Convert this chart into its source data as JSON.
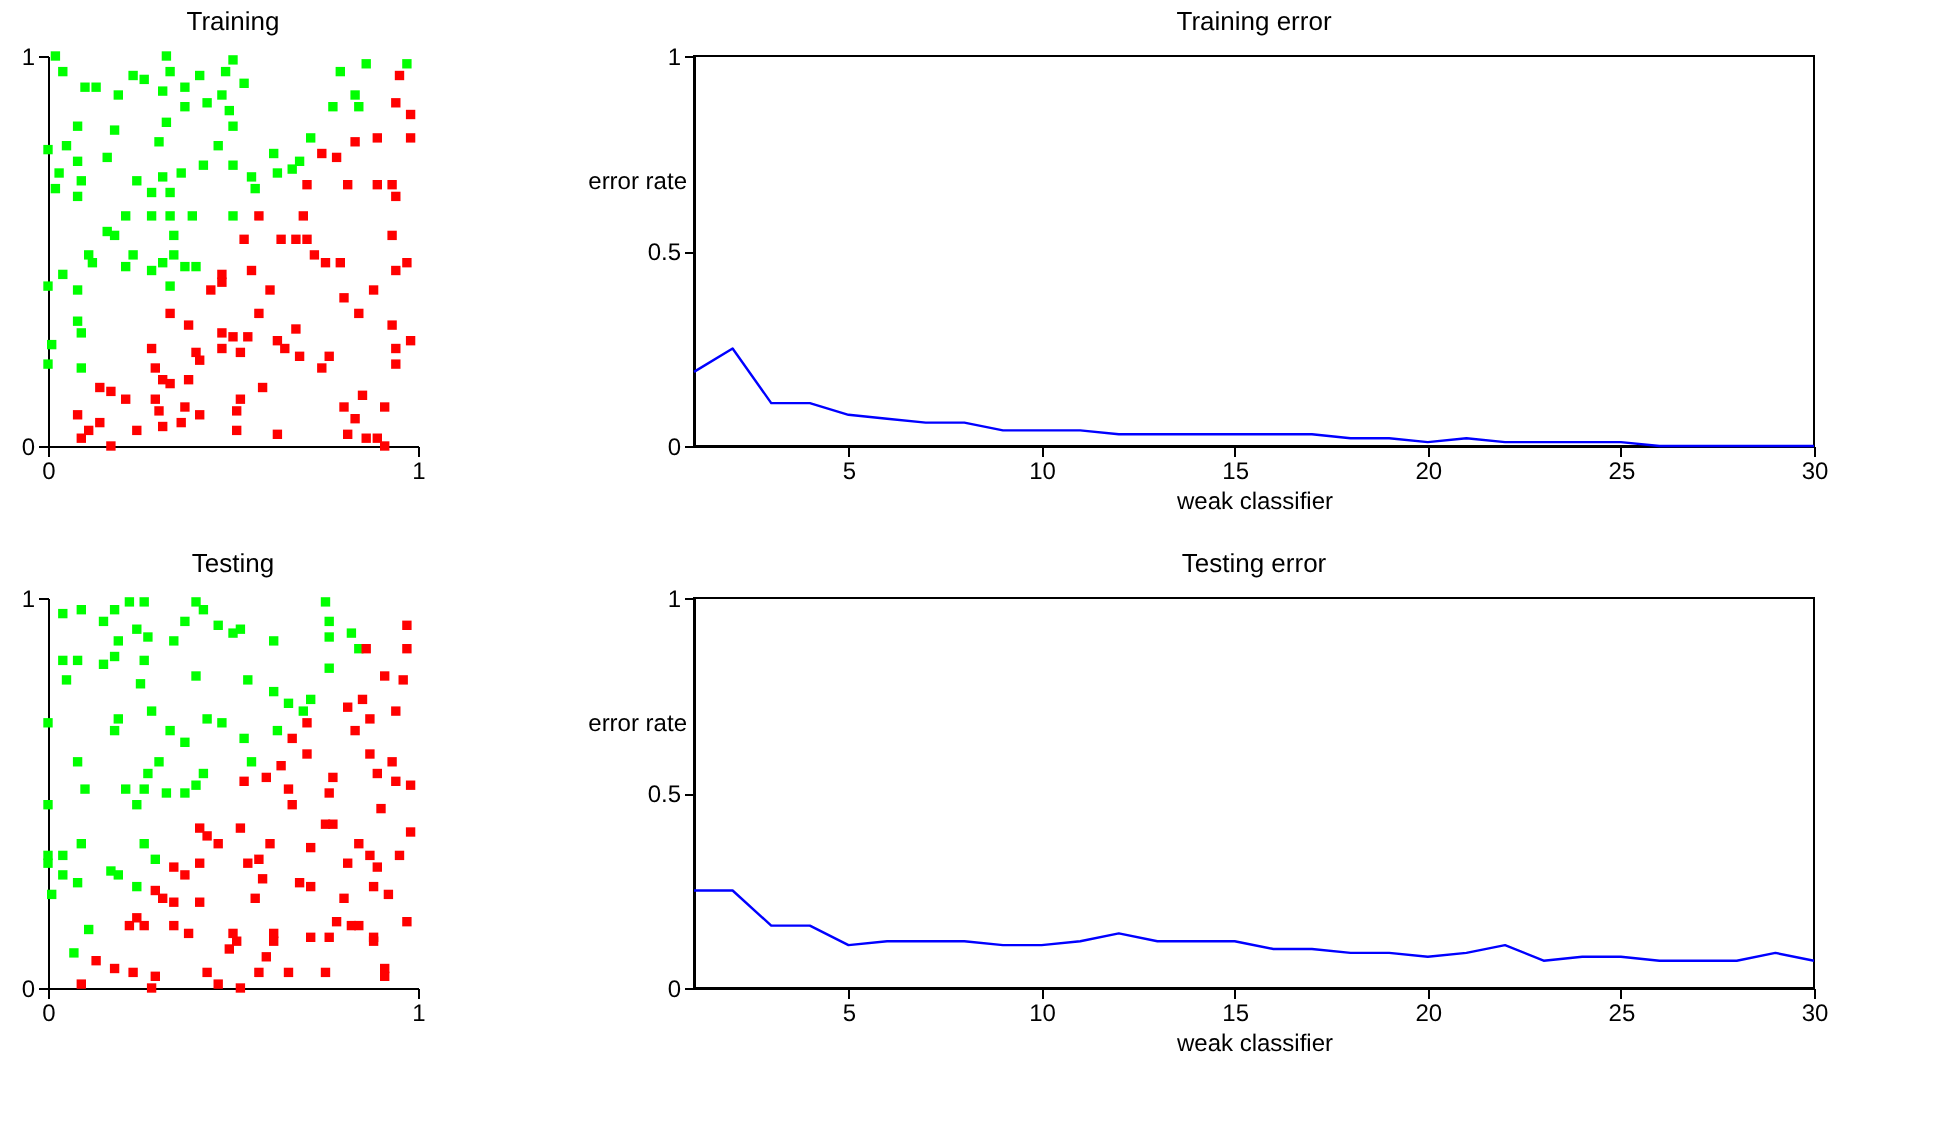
{
  "chart_data": [
    {
      "type": "scatter",
      "title": "Training",
      "marker": "square",
      "xlim": [
        0,
        1
      ],
      "ylim": [
        0,
        1
      ],
      "xticks": [
        0,
        1
      ],
      "yticks": [
        0,
        1
      ],
      "grid": false,
      "series": [
        {
          "color": "#00ff00",
          "x": [
            0.02,
            0.04,
            0.1,
            0.13,
            0.19,
            0.23,
            0.26,
            0.31,
            0.32,
            0.33,
            0.37,
            0.41,
            0.37,
            0.43,
            0.47,
            0.48,
            0.5,
            0.49,
            0.5,
            0.53,
            0.08,
            0.05,
            0.0,
            0.08,
            0.03,
            0.09,
            0.02,
            0.08,
            0.16,
            0.18,
            0.24,
            0.3,
            0.32,
            0.31,
            0.28,
            0.33,
            0.36,
            0.42,
            0.46,
            0.5,
            0.55,
            0.56,
            0.61,
            0.62,
            0.66,
            0.68,
            0.71,
            0.21,
            0.28,
            0.33,
            0.39,
            0.5,
            0.16,
            0.18,
            0.34,
            0.11,
            0.12,
            0.04,
            0.0,
            0.08,
            0.23,
            0.21,
            0.28,
            0.31,
            0.34,
            0.37,
            0.4,
            0.33,
            0.08,
            0.09,
            0.01,
            0.0,
            0.09,
            0.77,
            0.79,
            0.83,
            0.84,
            0.86,
            0.97
          ],
          "values": [
            1.0,
            0.96,
            0.92,
            0.92,
            0.9,
            0.95,
            0.94,
            0.91,
            1.0,
            0.96,
            0.92,
            0.95,
            0.87,
            0.88,
            0.9,
            0.96,
            0.99,
            0.86,
            0.82,
            0.93,
            0.82,
            0.77,
            0.76,
            0.73,
            0.7,
            0.68,
            0.66,
            0.64,
            0.74,
            0.81,
            0.68,
            0.78,
            0.83,
            0.69,
            0.65,
            0.65,
            0.7,
            0.72,
            0.77,
            0.72,
            0.69,
            0.66,
            0.75,
            0.7,
            0.71,
            0.73,
            0.79,
            0.59,
            0.59,
            0.59,
            0.59,
            0.59,
            0.55,
            0.54,
            0.54,
            0.49,
            0.47,
            0.44,
            0.41,
            0.4,
            0.49,
            0.46,
            0.45,
            0.47,
            0.49,
            0.46,
            0.46,
            0.41,
            0.32,
            0.29,
            0.26,
            0.21,
            0.2,
            0.87,
            0.96,
            0.9,
            0.87,
            0.98,
            0.98
          ]
        },
        {
          "color": "#ff0000",
          "x": [
            0.95,
            0.94,
            0.98,
            0.89,
            0.83,
            0.98,
            0.74,
            0.78,
            0.7,
            0.81,
            0.89,
            0.93,
            0.94,
            0.57,
            0.69,
            0.63,
            0.67,
            0.7,
            0.53,
            0.93,
            0.72,
            0.75,
            0.79,
            0.97,
            0.94,
            0.47,
            0.47,
            0.44,
            0.55,
            0.6,
            0.88,
            0.8,
            0.84,
            0.57,
            0.33,
            0.38,
            0.47,
            0.5,
            0.54,
            0.67,
            0.62,
            0.64,
            0.47,
            0.52,
            0.28,
            0.4,
            0.68,
            0.76,
            0.74,
            0.93,
            0.94,
            0.98,
            0.94,
            0.29,
            0.31,
            0.33,
            0.38,
            0.41,
            0.14,
            0.17,
            0.21,
            0.29,
            0.3,
            0.37,
            0.41,
            0.52,
            0.51,
            0.58,
            0.08,
            0.14,
            0.11,
            0.09,
            0.17,
            0.24,
            0.31,
            0.36,
            0.51,
            0.62,
            0.8,
            0.85,
            0.91,
            0.83,
            0.81,
            0.86,
            0.89,
            0.91
          ],
          "values": [
            0.95,
            0.88,
            0.85,
            0.79,
            0.78,
            0.79,
            0.75,
            0.74,
            0.67,
            0.67,
            0.67,
            0.67,
            0.64,
            0.59,
            0.59,
            0.53,
            0.53,
            0.53,
            0.53,
            0.54,
            0.49,
            0.47,
            0.47,
            0.47,
            0.45,
            0.44,
            0.42,
            0.4,
            0.45,
            0.4,
            0.4,
            0.38,
            0.34,
            0.34,
            0.34,
            0.31,
            0.29,
            0.28,
            0.28,
            0.3,
            0.27,
            0.25,
            0.25,
            0.24,
            0.25,
            0.24,
            0.23,
            0.23,
            0.2,
            0.31,
            0.25,
            0.27,
            0.21,
            0.2,
            0.17,
            0.16,
            0.17,
            0.22,
            0.15,
            0.14,
            0.12,
            0.12,
            0.09,
            0.1,
            0.08,
            0.12,
            0.09,
            0.15,
            0.08,
            0.06,
            0.04,
            0.02,
            0.0,
            0.04,
            0.05,
            0.06,
            0.04,
            0.03,
            0.1,
            0.13,
            0.1,
            0.07,
            0.03,
            0.02,
            0.02,
            0.0
          ]
        }
      ]
    },
    {
      "type": "line",
      "title": "Training error",
      "xlabel": "weak classifier",
      "ylabel": "error rate",
      "xlim": [
        1,
        30
      ],
      "ylim": [
        0,
        1
      ],
      "xticks": [
        5,
        10,
        15,
        20,
        25,
        30
      ],
      "yticks": [
        0,
        0.5,
        1
      ],
      "grid": false,
      "line_style": "solid",
      "x": [
        1,
        2,
        3,
        4,
        5,
        6,
        7,
        8,
        9,
        10,
        11,
        12,
        13,
        14,
        15,
        16,
        17,
        18,
        19,
        20,
        21,
        22,
        23,
        24,
        25,
        26,
        27,
        28,
        29,
        30
      ],
      "series": [
        {
          "color": "#0000ff",
          "values": [
            0.19,
            0.25,
            0.11,
            0.11,
            0.08,
            0.07,
            0.06,
            0.06,
            0.04,
            0.04,
            0.04,
            0.03,
            0.03,
            0.03,
            0.03,
            0.03,
            0.03,
            0.02,
            0.02,
            0.01,
            0.02,
            0.01,
            0.01,
            0.01,
            0.01,
            0,
            0,
            0,
            0,
            0
          ]
        }
      ]
    },
    {
      "type": "scatter",
      "title": "Testing",
      "marker": "square",
      "xlim": [
        0,
        1
      ],
      "ylim": [
        0,
        1
      ],
      "xticks": [
        0,
        1
      ],
      "yticks": [
        0,
        1
      ],
      "grid": false,
      "series": [
        {
          "color": "#00ff00",
          "x": [
            0.04,
            0.09,
            0.15,
            0.18,
            0.22,
            0.26,
            0.19,
            0.24,
            0.27,
            0.34,
            0.37,
            0.4,
            0.42,
            0.46,
            0.5,
            0.52,
            0.61,
            0.75,
            0.76,
            0.76,
            0.82,
            0.84,
            0.04,
            0.08,
            0.15,
            0.18,
            0.26,
            0.05,
            0.25,
            0.4,
            0.54,
            0.61,
            0.65,
            0.71,
            0.69,
            0.76,
            0.0,
            0.19,
            0.18,
            0.28,
            0.33,
            0.37,
            0.43,
            0.47,
            0.53,
            0.62,
            0.55,
            0.08,
            0.1,
            0.21,
            0.27,
            0.3,
            0.26,
            0.24,
            0.32,
            0.37,
            0.4,
            0.42,
            0.0,
            0.0,
            0.0,
            0.04,
            0.09,
            0.04,
            0.08,
            0.17,
            0.19,
            0.26,
            0.29,
            0.24,
            0.01,
            0.11,
            0.07
          ],
          "values": [
            0.96,
            0.97,
            0.94,
            0.97,
            0.99,
            0.99,
            0.89,
            0.92,
            0.9,
            0.89,
            0.94,
            0.99,
            0.97,
            0.93,
            0.91,
            0.92,
            0.89,
            0.99,
            0.94,
            0.9,
            0.91,
            0.87,
            0.84,
            0.84,
            0.83,
            0.85,
            0.84,
            0.79,
            0.78,
            0.8,
            0.79,
            0.76,
            0.73,
            0.74,
            0.71,
            0.82,
            0.68,
            0.69,
            0.66,
            0.71,
            0.66,
            0.63,
            0.69,
            0.68,
            0.64,
            0.66,
            0.58,
            0.58,
            0.51,
            0.51,
            0.55,
            0.58,
            0.51,
            0.47,
            0.5,
            0.5,
            0.52,
            0.55,
            0.47,
            0.34,
            0.32,
            0.34,
            0.37,
            0.29,
            0.27,
            0.3,
            0.29,
            0.37,
            0.33,
            0.26,
            0.24,
            0.15,
            0.09
          ]
        },
        {
          "color": "#ff0000",
          "x": [
            0.97,
            0.97,
            0.86,
            0.91,
            0.96,
            0.81,
            0.85,
            0.87,
            0.83,
            0.94,
            0.7,
            0.66,
            0.7,
            0.63,
            0.65,
            0.66,
            0.59,
            0.53,
            0.77,
            0.76,
            0.87,
            0.93,
            0.89,
            0.94,
            0.98,
            0.9,
            0.75,
            0.77,
            0.41,
            0.43,
            0.46,
            0.52,
            0.6,
            0.98,
            0.84,
            0.87,
            0.71,
            0.81,
            0.95,
            0.89,
            0.88,
            0.92,
            0.34,
            0.37,
            0.41,
            0.54,
            0.57,
            0.58,
            0.68,
            0.29,
            0.31,
            0.34,
            0.41,
            0.56,
            0.71,
            0.8,
            0.24,
            0.22,
            0.26,
            0.34,
            0.38,
            0.5,
            0.51,
            0.49,
            0.61,
            0.61,
            0.59,
            0.71,
            0.76,
            0.78,
            0.82,
            0.84,
            0.88,
            0.88,
            0.97,
            0.13,
            0.18,
            0.23,
            0.29,
            0.28,
            0.09,
            0.43,
            0.46,
            0.52,
            0.57,
            0.65,
            0.75,
            0.91,
            0.91
          ],
          "values": [
            0.93,
            0.87,
            0.87,
            0.8,
            0.79,
            0.72,
            0.74,
            0.69,
            0.66,
            0.71,
            0.68,
            0.64,
            0.6,
            0.57,
            0.51,
            0.47,
            0.54,
            0.53,
            0.54,
            0.5,
            0.6,
            0.58,
            0.55,
            0.53,
            0.52,
            0.46,
            0.42,
            0.42,
            0.41,
            0.39,
            0.37,
            0.41,
            0.37,
            0.4,
            0.37,
            0.34,
            0.36,
            0.32,
            0.34,
            0.31,
            0.26,
            0.24,
            0.31,
            0.29,
            0.32,
            0.32,
            0.33,
            0.28,
            0.27,
            0.25,
            0.23,
            0.22,
            0.22,
            0.23,
            0.26,
            0.23,
            0.18,
            0.16,
            0.16,
            0.16,
            0.14,
            0.14,
            0.12,
            0.1,
            0.14,
            0.12,
            0.08,
            0.13,
            0.13,
            0.17,
            0.16,
            0.16,
            0.13,
            0.12,
            0.17,
            0.07,
            0.05,
            0.04,
            0.03,
            0.0,
            0.01,
            0.04,
            0.01,
            0.0,
            0.04,
            0.04,
            0.04,
            0.05,
            0.03
          ]
        }
      ]
    },
    {
      "type": "line",
      "title": "Testing error",
      "xlabel": "weak classifier",
      "ylabel": "error rate",
      "xlim": [
        1,
        30
      ],
      "ylim": [
        0,
        1
      ],
      "xticks": [
        5,
        10,
        15,
        20,
        25,
        30
      ],
      "yticks": [
        0,
        0.5,
        1
      ],
      "grid": false,
      "line_style": "solid",
      "x": [
        1,
        2,
        3,
        4,
        5,
        6,
        7,
        8,
        9,
        10,
        11,
        12,
        13,
        14,
        15,
        16,
        17,
        18,
        19,
        20,
        21,
        22,
        23,
        24,
        25,
        26,
        27,
        28,
        29,
        30
      ],
      "series": [
        {
          "color": "#0000ff",
          "values": [
            0.25,
            0.25,
            0.16,
            0.16,
            0.11,
            0.12,
            0.12,
            0.12,
            0.11,
            0.11,
            0.12,
            0.14,
            0.12,
            0.12,
            0.12,
            0.1,
            0.1,
            0.09,
            0.09,
            0.08,
            0.09,
            0.11,
            0.07,
            0.08,
            0.08,
            0.07,
            0.07,
            0.07,
            0.09,
            0.07
          ]
        }
      ]
    }
  ]
}
